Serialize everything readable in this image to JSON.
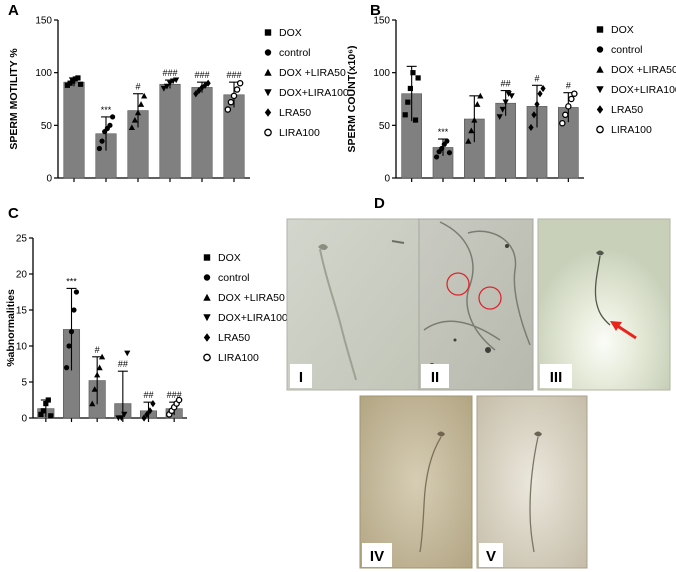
{
  "panels": {
    "A": {
      "label": "A"
    },
    "B": {
      "label": "B"
    },
    "C": {
      "label": "C"
    },
    "D": {
      "label": "D"
    }
  },
  "chart_data": [
    {
      "id": "A",
      "type": "bar",
      "ylabel": "SPERM MOTILITY %",
      "ylim": [
        0,
        150
      ],
      "yticks": [
        0,
        50,
        100,
        150
      ],
      "categories": [
        "DOX",
        "control",
        "DOX +LIRA50",
        "DOX+LIRA100",
        "LRA50",
        "LIRA100"
      ],
      "values": [
        91,
        42,
        64,
        89,
        86,
        79
      ],
      "errors": [
        4,
        16,
        16,
        4,
        5,
        12
      ],
      "significance": [
        "",
        "***",
        "#",
        "###",
        "###",
        "###"
      ],
      "points": [
        [
          88,
          90,
          92,
          94,
          95,
          89
        ],
        [
          28,
          35,
          44,
          47,
          50,
          58
        ],
        [
          48,
          55,
          62,
          70,
          78
        ],
        [
          85,
          87,
          90,
          92,
          93
        ],
        [
          80,
          83,
          86,
          88,
          90
        ],
        [
          65,
          72,
          78,
          84,
          90
        ]
      ],
      "legend": [
        "DOX",
        "control",
        "DOX +LIRA50",
        "DOX+LIRA100",
        "LRA50",
        "LIRA100"
      ]
    },
    {
      "id": "B",
      "type": "bar",
      "ylabel": "SPERM COUNT(x10⁶)",
      "ylim": [
        0,
        150
      ],
      "yticks": [
        0,
        50,
        100,
        150
      ],
      "categories": [
        "DOX",
        "control",
        "DOX +LIRA50",
        "DOX+LIRA100",
        "LRA50",
        "LIRA100"
      ],
      "values": [
        80,
        29,
        56,
        71,
        68,
        67
      ],
      "errors": [
        26,
        8,
        22,
        12,
        20,
        14
      ],
      "significance": [
        "",
        "***",
        "",
        "##",
        "#",
        "#"
      ],
      "points": [
        [
          60,
          72,
          85,
          100,
          55,
          95
        ],
        [
          20,
          25,
          28,
          32,
          35,
          24
        ],
        [
          35,
          45,
          55,
          70,
          78
        ],
        [
          58,
          65,
          72,
          80,
          78
        ],
        [
          48,
          60,
          70,
          80,
          85
        ],
        [
          52,
          60,
          68,
          75,
          80
        ]
      ],
      "legend": [
        "DOX",
        "control",
        "DOX +LIRA50",
        "DOX+LIRA100",
        "LRA50",
        "LIRA100"
      ]
    },
    {
      "id": "C",
      "type": "bar",
      "ylabel": "%abnormalities",
      "ylim": [
        0,
        25
      ],
      "yticks": [
        0,
        5,
        10,
        15,
        20,
        25
      ],
      "categories": [
        "DOX",
        "control",
        "DOX +LIRA50",
        "DOX+LIRA100",
        "LRA50",
        "LIRA100"
      ],
      "values": [
        1.3,
        12.3,
        5.2,
        2.0,
        1.0,
        1.3
      ],
      "errors": [
        1.2,
        5.7,
        3.3,
        4.5,
        1.2,
        0.9
      ],
      "significance": [
        "",
        "***",
        "#",
        "##",
        "##",
        "###"
      ],
      "points": [
        [
          0.5,
          1.0,
          2.0,
          2.5,
          0.3
        ],
        [
          7.0,
          10.0,
          12.0,
          15.0,
          17.5
        ],
        [
          2.0,
          4.0,
          6.0,
          7.0,
          8.5
        ],
        [
          0.0,
          0.0,
          0.5,
          9.0
        ],
        [
          0.0,
          0.5,
          1.0,
          2.0
        ],
        [
          0.5,
          1.0,
          1.5,
          2.0,
          2.5
        ]
      ],
      "legend": [
        "DOX",
        "control",
        "DOX +LIRA50",
        "DOX+LIRA100",
        "LRA50",
        "LIRA100"
      ]
    }
  ],
  "micrographs": [
    {
      "id": "I",
      "label": "I"
    },
    {
      "id": "II",
      "label": "II"
    },
    {
      "id": "III",
      "label": "III"
    },
    {
      "id": "IV",
      "label": "IV"
    },
    {
      "id": "V",
      "label": "V"
    }
  ],
  "colors": {
    "bar": "#808080",
    "axis": "#000000",
    "arrow": "#e8241c",
    "circle": "#d9282f"
  }
}
